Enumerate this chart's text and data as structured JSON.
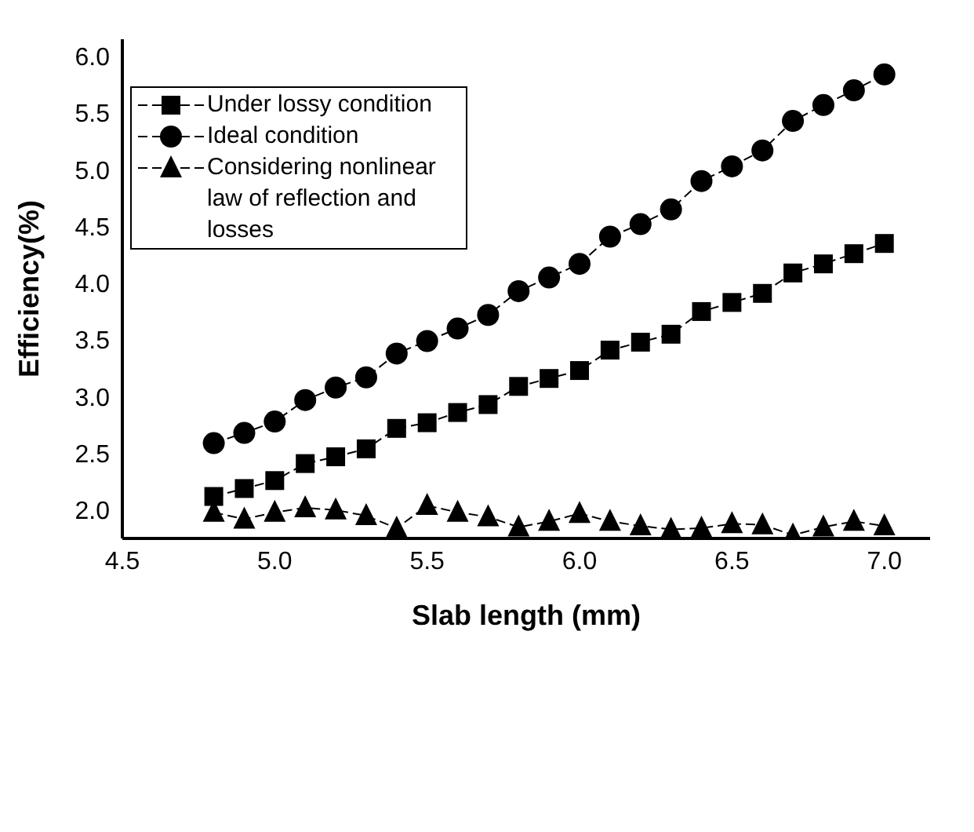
{
  "chart_data": {
    "type": "line",
    "xlabel": "Slab length (mm)",
    "ylabel": "Efficiency(%)",
    "x": [
      4.8,
      4.9,
      5.0,
      5.1,
      5.2,
      5.3,
      5.4,
      5.5,
      5.6,
      5.7,
      5.8,
      5.9,
      6.0,
      6.1,
      6.2,
      6.3,
      6.4,
      6.5,
      6.6,
      6.7,
      6.8,
      6.9,
      7.0
    ],
    "series": [
      {
        "name": "Under lossy condition",
        "color": "#000000",
        "marker": "square",
        "values": [
          2.12,
          2.19,
          2.26,
          2.41,
          2.47,
          2.54,
          2.72,
          2.77,
          2.86,
          2.93,
          3.09,
          3.16,
          3.23,
          3.41,
          3.48,
          3.55,
          3.75,
          3.83,
          3.91,
          4.09,
          4.17,
          4.26,
          4.35
        ]
      },
      {
        "name": "Ideal condition",
        "color": "#000000",
        "marker": "circle",
        "values": [
          2.59,
          2.68,
          2.78,
          2.97,
          3.08,
          3.17,
          3.38,
          3.49,
          3.6,
          3.72,
          3.93,
          4.05,
          4.17,
          4.41,
          4.52,
          4.65,
          4.9,
          5.03,
          5.17,
          5.43,
          5.57,
          5.7,
          5.84
        ]
      },
      {
        "name": "Considering nonlinear law of reflection and losses",
        "color": "#000000",
        "marker": "triangle",
        "values": [
          1.98,
          1.92,
          1.98,
          2.02,
          2.0,
          1.95,
          1.84,
          2.04,
          1.98,
          1.94,
          1.85,
          1.9,
          1.97,
          1.9,
          1.86,
          1.83,
          1.84,
          1.88,
          1.87,
          1.78,
          1.85,
          1.9,
          1.86
        ]
      }
    ],
    "xlim": [
      4.5,
      7.15
    ],
    "xticks": [
      4.5,
      {
        "value": 5,
        "label": "5.0"
      },
      5.5,
      {
        "value": 6,
        "label": "6.0"
      },
      6.5,
      {
        "value": 7,
        "label": "7.0"
      }
    ],
    "ylim": [
      1.75,
      6.15
    ],
    "yticks": [
      {
        "value": 2,
        "label": "2.0"
      },
      2.5,
      {
        "value": 3,
        "label": "3.0"
      },
      3.5,
      {
        "value": 4,
        "label": "4.0"
      },
      4.5,
      {
        "value": 5,
        "label": "5.0"
      },
      5.5,
      {
        "value": 6,
        "label": "6.0"
      }
    ],
    "grid": false,
    "legend": "top left",
    "line_style": "dashed"
  }
}
